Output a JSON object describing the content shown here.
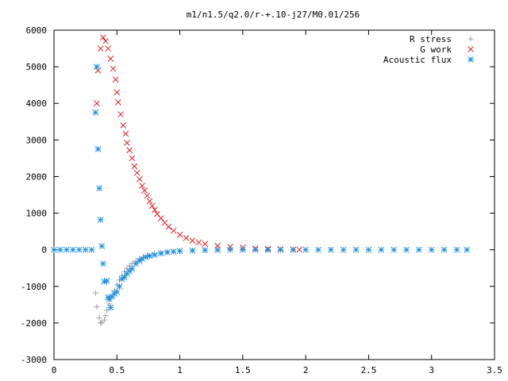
{
  "chart_data": {
    "type": "scatter",
    "title": "m1/n1.5/q2.0/r-+.10-j27/M0.01/256",
    "xlabel": "",
    "ylabel": "",
    "xlim": [
      0,
      3.5
    ],
    "ylim": [
      -3000,
      6000
    ],
    "x_ticks": [
      "0",
      "0.5",
      "1",
      "1.5",
      "2",
      "2.5",
      "3",
      "3.5"
    ],
    "y_ticks": [
      "6000",
      "5000",
      "4000",
      "3000",
      "2000",
      "1000",
      "0",
      "-1000",
      "-2000",
      "-3000"
    ],
    "legend_position": "top-right",
    "grid": false,
    "series": [
      {
        "name": "R stress",
        "marker": "plus",
        "color": "#a0a0a0",
        "x": [
          0.33,
          0.34,
          0.36,
          0.37,
          0.38,
          0.4,
          0.41,
          0.42,
          0.44,
          0.46,
          0.48,
          0.5,
          0.52,
          0.54,
          0.56,
          0.58,
          0.6,
          0.62,
          0.65,
          0.68,
          0.71,
          0.75,
          0.8,
          0.85,
          0.9,
          1.0,
          1.1,
          1.2,
          1.3,
          1.4,
          1.5,
          1.7,
          1.9
        ],
        "y": [
          -1180,
          -1560,
          -1860,
          -2000,
          -1980,
          -1920,
          -1800,
          -1650,
          -1480,
          -1300,
          -1120,
          -960,
          -830,
          -710,
          -600,
          -510,
          -440,
          -380,
          -310,
          -250,
          -200,
          -150,
          -110,
          -80,
          -60,
          -30,
          -15,
          -7,
          -3,
          -1,
          0,
          0,
          0
        ]
      },
      {
        "name": "G work",
        "marker": "x",
        "color": "#e02020",
        "x": [
          0.34,
          0.35,
          0.37,
          0.39,
          0.41,
          0.43,
          0.45,
          0.47,
          0.49,
          0.5,
          0.51,
          0.53,
          0.55,
          0.57,
          0.58,
          0.6,
          0.62,
          0.64,
          0.66,
          0.68,
          0.7,
          0.72,
          0.74,
          0.76,
          0.78,
          0.8,
          0.82,
          0.85,
          0.88,
          0.91,
          0.95,
          1.0,
          1.05,
          1.1,
          1.15,
          1.2,
          1.3,
          1.4,
          1.5,
          1.6,
          1.7,
          1.8,
          1.9,
          1.95
        ],
        "y": [
          4000,
          4900,
          5500,
          5800,
          5700,
          5500,
          5220,
          4950,
          4650,
          4300,
          4030,
          3700,
          3400,
          3170,
          2920,
          2720,
          2500,
          2280,
          2100,
          1930,
          1750,
          1620,
          1480,
          1330,
          1200,
          1090,
          980,
          860,
          740,
          630,
          520,
          410,
          320,
          250,
          200,
          160,
          110,
          80,
          60,
          40,
          25,
          15,
          8,
          5
        ]
      },
      {
        "name": "Acoustic flux",
        "marker": "star",
        "color": "#1e90e0",
        "x": [
          0,
          0.05,
          0.1,
          0.15,
          0.2,
          0.25,
          0.3,
          0.33,
          0.34,
          0.35,
          0.36,
          0.37,
          0.38,
          0.39,
          0.4,
          0.42,
          0.43,
          0.44,
          0.45,
          0.46,
          0.48,
          0.5,
          0.52,
          0.54,
          0.56,
          0.58,
          0.6,
          0.62,
          0.65,
          0.68,
          0.7,
          0.73,
          0.76,
          0.8,
          0.85,
          0.9,
          0.95,
          1.0,
          1.1,
          1.2,
          1.3,
          1.4,
          1.5,
          1.6,
          1.7,
          1.8,
          1.9,
          2.0,
          2.1,
          2.2,
          2.3,
          2.4,
          2.5,
          2.6,
          2.7,
          2.8,
          2.9,
          3.0,
          3.1,
          3.2,
          3.28
        ],
        "y": [
          0,
          0,
          0,
          0,
          0,
          0,
          0,
          3750,
          5000,
          2750,
          1680,
          820,
          100,
          -380,
          -870,
          -850,
          -1300,
          -1350,
          -1580,
          -1280,
          -1200,
          -1150,
          -1000,
          -800,
          -750,
          -650,
          -580,
          -520,
          -380,
          -300,
          -250,
          -200,
          -170,
          -140,
          -100,
          -70,
          -50,
          -35,
          -20,
          -10,
          -5,
          0,
          0,
          0,
          0,
          0,
          0,
          0,
          0,
          0,
          0,
          0,
          0,
          0,
          0,
          0,
          0,
          0,
          0,
          0,
          0
        ]
      }
    ]
  }
}
